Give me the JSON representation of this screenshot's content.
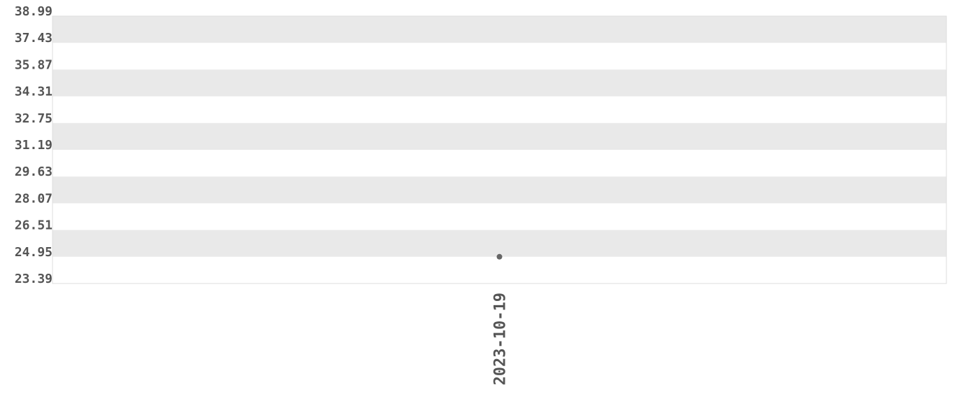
{
  "chart_data": {
    "type": "scatter",
    "title": "",
    "xlabel": "",
    "ylabel": "",
    "x_categories": [
      "2023-10-19"
    ],
    "points": [
      {
        "x": "2023-10-19",
        "y": 24.95
      }
    ],
    "ylim": [
      23.39,
      38.99
    ],
    "y_ticks": [
      "38.99",
      "37.43",
      "35.87",
      "34.31",
      "32.75",
      "31.19",
      "29.63",
      "28.07",
      "26.51",
      "24.95",
      "23.39"
    ],
    "grid": "alternating horizontal bands",
    "legend": "none",
    "colors": {
      "band": "#e9e9e9",
      "point": "#666666",
      "text": "#555555",
      "border": "#dddddd"
    }
  }
}
